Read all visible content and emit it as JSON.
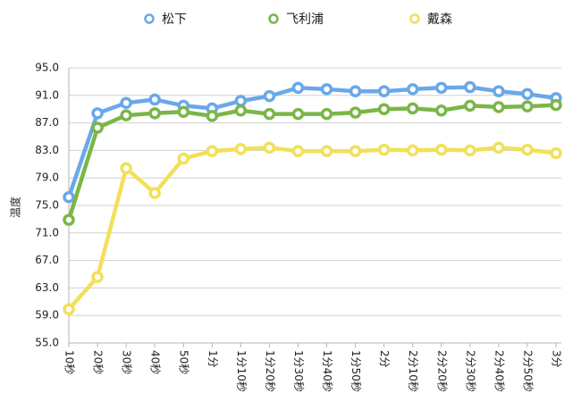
{
  "chart_data": {
    "type": "line",
    "title": "",
    "xlabel": "",
    "ylabel": "温度",
    "ylim": [
      55.0,
      95.0
    ],
    "yticks": [
      "95.0",
      "91.0",
      "87.0",
      "83.0",
      "79.0",
      "75.0",
      "71.0",
      "67.0",
      "63.0",
      "59.0",
      "55.0"
    ],
    "categories": [
      "10秒",
      "20秒",
      "30秒",
      "40秒",
      "50秒",
      "1分",
      "1分10秒",
      "1分20秒",
      "1分30秒",
      "1分40秒",
      "1分50秒",
      "2分",
      "2分10秒",
      "2分20秒",
      "2分30秒",
      "2分40秒",
      "2分50秒",
      "3分"
    ],
    "grid": true,
    "legend_position": "top",
    "series": [
      {
        "name": "松下",
        "color": "#6aa8e8",
        "values": [
          76.2,
          88.4,
          89.9,
          90.4,
          89.5,
          89.1,
          90.2,
          90.9,
          92.1,
          91.9,
          91.6,
          91.6,
          91.9,
          92.1,
          92.2,
          91.6,
          91.2,
          90.6
        ]
      },
      {
        "name": "飞利浦",
        "color": "#7ab648",
        "values": [
          72.9,
          86.3,
          88.1,
          88.4,
          88.6,
          88.0,
          88.8,
          88.3,
          88.3,
          88.3,
          88.5,
          89.0,
          89.1,
          88.8,
          89.5,
          89.3,
          89.4,
          89.6
        ]
      },
      {
        "name": "戴森",
        "color": "#f2e05a",
        "values": [
          59.9,
          64.6,
          80.4,
          76.8,
          81.8,
          82.9,
          83.2,
          83.4,
          82.9,
          82.9,
          82.9,
          83.1,
          83.0,
          83.1,
          83.0,
          83.4,
          83.1,
          82.6
        ]
      }
    ]
  }
}
